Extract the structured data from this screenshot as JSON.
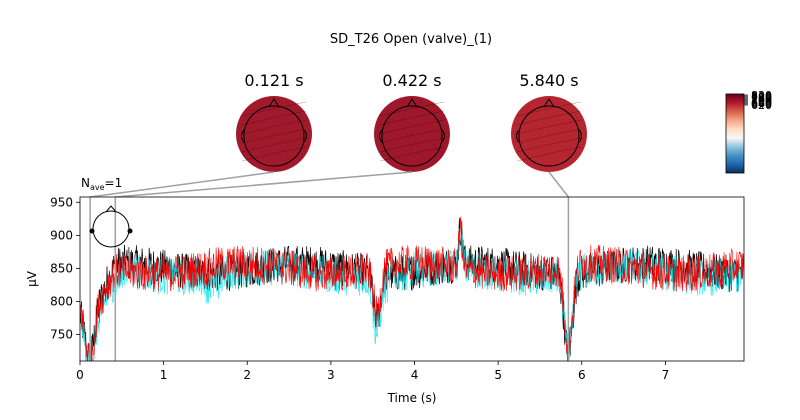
{
  "suptitle": "SD_T26 Open (valve)_(1)",
  "chart_data": {
    "type": "line",
    "title": "SD_T26 Open (valve)_(1)",
    "nave_label": "N",
    "nave_sub": "ave",
    "nave_value": "=1",
    "xlabel": "Time (s)",
    "ylabel": "µV",
    "xlim": [
      0,
      7.94
    ],
    "ylim": [
      710,
      958
    ],
    "xticks": [
      0,
      1,
      2,
      3,
      4,
      5,
      6,
      7
    ],
    "yticks": [
      750,
      800,
      850,
      900,
      950
    ],
    "grid": false,
    "series_colors": [
      "#000000",
      "#00e5ee",
      "#ff0000"
    ],
    "baseline_uv": 850,
    "noise_amplitude_uv": 28,
    "events": [
      {
        "t": 0.0,
        "depth": -60,
        "width": 0.15
      },
      {
        "t": 0.121,
        "depth": -95,
        "width": 0.08
      },
      {
        "t": 0.25,
        "depth": -40,
        "width": 0.12
      },
      {
        "t": 3.55,
        "depth": -70,
        "width": 0.06
      },
      {
        "t": 4.55,
        "depth": 55,
        "width": 0.03
      },
      {
        "t": 5.84,
        "depth": -120,
        "width": 0.07
      }
    ],
    "topomap_times": [
      0.121,
      0.422,
      5.84
    ],
    "topomap_labels": [
      "0.121 s",
      "0.422 s",
      "5.840 s"
    ],
    "colorbar_tick_labels": [
      "820",
      "800",
      "780",
      "760",
      "740",
      "720",
      "700",
      "680",
      "660",
      "640",
      "620"
    ],
    "colormap": [
      "#053061",
      "#2166ac",
      "#4393c3",
      "#92c5de",
      "#f7f7f7",
      "#fddbc7",
      "#f4a582",
      "#d6604d",
      "#b2182b",
      "#67001f"
    ]
  }
}
